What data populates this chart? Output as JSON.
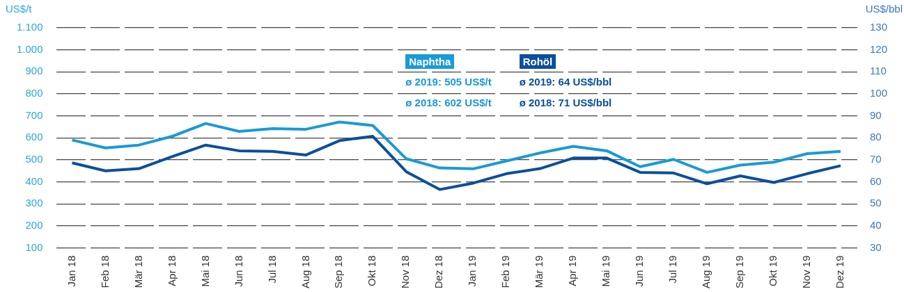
{
  "chart_data": {
    "type": "line",
    "ylabel": "US$/t",
    "y2label": "US$/bbl",
    "categories": [
      "Jan 18",
      "Feb 18",
      "Mär 18",
      "Apr 18",
      "Mai 18",
      "Jun 18",
      "Jul 18",
      "Aug 18",
      "Sep 18",
      "Okt 18",
      "Nov 18",
      "Dez 18",
      "Jan 19",
      "Feb 19",
      "Mär 19",
      "Apr 19",
      "Mai 19",
      "Jun 19",
      "Jul 19",
      "Aug 19",
      "Sep 19",
      "Okt 19",
      "Nov 19",
      "Dez 19"
    ],
    "series": [
      {
        "name": "Naphtha",
        "color": "#1a9ad6",
        "values": [
          590,
          554,
          567,
          607,
          665,
          629,
          642,
          639,
          672,
          656,
          505,
          463,
          459,
          495,
          531,
          561,
          541,
          469,
          502,
          443,
          476,
          489,
          528,
          538
        ]
      },
      {
        "name": "Rohöl",
        "color": "#0a4f9e",
        "axis": "y2",
        "values": [
          68.6,
          65,
          66,
          71.5,
          76.7,
          74.1,
          73.8,
          72.2,
          78.7,
          80.7,
          64.6,
          56.5,
          59.4,
          63.7,
          66,
          70.8,
          70.8,
          64.3,
          64,
          59.1,
          62.7,
          59.7,
          63.7,
          67.3
        ]
      }
    ],
    "ylim": [
      100,
      1100
    ],
    "yticks": [
      100,
      200,
      300,
      400,
      500,
      600,
      700,
      800,
      900,
      {
        "value": 1000,
        "label": "1.000"
      },
      {
        "value": 1100,
        "label": "1.100"
      }
    ],
    "y2lim": [
      30,
      130
    ],
    "y2ticks": [
      30,
      40,
      50,
      60,
      70,
      80,
      90,
      100,
      110,
      120,
      130
    ],
    "grid": "y",
    "legend": "top",
    "marker": "none",
    "line_style": "solid",
    "annotations": [
      "ø 2019: 505 US$/t",
      "ø 2018: 602 US$/t",
      "ø 2019: 64 US$/bbl",
      "ø 2018: 71 US$/bbl"
    ]
  }
}
